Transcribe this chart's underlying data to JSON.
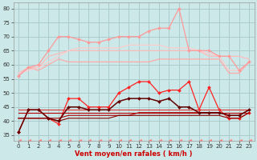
{
  "bg_color": "#cce8e8",
  "grid_color": "#aacccc",
  "xlabel": "Vent moyen/en rafales ( km/h )",
  "xlabel_color": "#cc0000",
  "xlim": [
    -0.5,
    23.5
  ],
  "ylim": [
    33,
    82
  ],
  "yticks": [
    35,
    40,
    45,
    50,
    55,
    60,
    65,
    70,
    75,
    80
  ],
  "xticks": [
    0,
    1,
    2,
    3,
    4,
    5,
    6,
    7,
    8,
    9,
    10,
    11,
    12,
    13,
    14,
    15,
    16,
    17,
    18,
    19,
    20,
    21,
    22,
    23
  ],
  "x": [
    0,
    1,
    2,
    3,
    4,
    5,
    6,
    7,
    8,
    9,
    10,
    11,
    12,
    13,
    14,
    15,
    16,
    17,
    18,
    19,
    20,
    21,
    22,
    23
  ],
  "series": [
    {
      "color": "#ffaaaa",
      "lw": 0.9,
      "marker": null,
      "y": [
        56,
        59,
        58,
        60,
        62,
        61,
        61,
        61,
        61,
        61,
        61,
        61,
        61,
        61,
        62,
        62,
        62,
        62,
        62,
        62,
        62,
        57,
        57,
        61
      ]
    },
    {
      "color": "#ffbbbb",
      "lw": 0.9,
      "marker": null,
      "y": [
        57,
        59,
        59,
        63,
        64,
        65,
        65,
        65,
        65,
        65,
        65,
        65,
        65,
        65,
        65,
        65,
        65,
        65,
        65,
        63,
        63,
        63,
        63,
        62
      ]
    },
    {
      "color": "#ffcccc",
      "lw": 0.9,
      "marker": null,
      "y": [
        57,
        58,
        59,
        61,
        63,
        65,
        66,
        66,
        66,
        66,
        66,
        67,
        67,
        67,
        67,
        66,
        66,
        66,
        65,
        64,
        63,
        58,
        58,
        61
      ]
    },
    {
      "color": "#ff9999",
      "lw": 0.9,
      "marker": "D",
      "ms": 2.0,
      "y": [
        56,
        59,
        60,
        65,
        70,
        70,
        69,
        68,
        68,
        69,
        70,
        70,
        70,
        72,
        73,
        73,
        80,
        65,
        65,
        65,
        63,
        63,
        58,
        61
      ]
    },
    {
      "color": "#ff2222",
      "lw": 0.9,
      "marker": "D",
      "ms": 2.0,
      "y": [
        36,
        44,
        44,
        41,
        39,
        48,
        48,
        45,
        45,
        45,
        50,
        52,
        54,
        54,
        50,
        51,
        51,
        54,
        44,
        52,
        44,
        41,
        41,
        43
      ]
    },
    {
      "color": "#dd3333",
      "lw": 0.8,
      "marker": null,
      "y": [
        44,
        44,
        44,
        44,
        44,
        44,
        44,
        44,
        44,
        44,
        44,
        44,
        44,
        44,
        44,
        44,
        44,
        44,
        44,
        44,
        44,
        44,
        44,
        44
      ]
    },
    {
      "color": "#bb0000",
      "lw": 0.8,
      "marker": null,
      "y": [
        43,
        43,
        43,
        43,
        43,
        43,
        43,
        43,
        43,
        43,
        43,
        43,
        43,
        43,
        43,
        43,
        43,
        43,
        43,
        43,
        43,
        43,
        43,
        43
      ]
    },
    {
      "color": "#aa0000",
      "lw": 0.8,
      "marker": null,
      "y": [
        41,
        41,
        41,
        41,
        41,
        42,
        42,
        42,
        42,
        42,
        42,
        42,
        43,
        43,
        43,
        43,
        43,
        43,
        43,
        43,
        43,
        42,
        42,
        44
      ]
    },
    {
      "color": "#880000",
      "lw": 0.8,
      "marker": null,
      "y": [
        41,
        41,
        41,
        41,
        40,
        41,
        41,
        41,
        41,
        41,
        42,
        42,
        42,
        42,
        42,
        42,
        42,
        42,
        42,
        42,
        42,
        41,
        41,
        43
      ]
    },
    {
      "color": "#660000",
      "lw": 1.1,
      "marker": "D",
      "ms": 2.0,
      "y": [
        36,
        44,
        44,
        41,
        40,
        45,
        45,
        44,
        44,
        44,
        47,
        48,
        48,
        48,
        47,
        48,
        45,
        45,
        43,
        43,
        43,
        42,
        42,
        44
      ]
    },
    {
      "color": "#ff8888",
      "lw": 0.8,
      "marker": 4,
      "ms": 3.5,
      "dash": [
        4,
        3
      ],
      "y": [
        33,
        33,
        33,
        33,
        33,
        33,
        33,
        33,
        33,
        33,
        33,
        33,
        33,
        33,
        33,
        33,
        33,
        33,
        33,
        33,
        33,
        33,
        33,
        33
      ]
    }
  ]
}
